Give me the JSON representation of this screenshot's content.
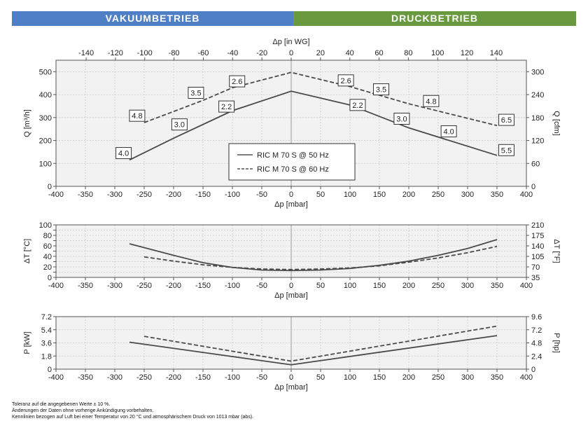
{
  "header": {
    "left": "VAKUUMBETRIEB",
    "right": "DRUCKBETRIEB",
    "colors": {
      "left": "#4f7fc4",
      "right": "#6a9a3f"
    }
  },
  "footnotes": [
    "Toleranz auf die angegebenen Werte ± 10 %.",
    "Änderungen der Daten ohne vorherige Ankündigung vorbehalten.",
    "Kennlinien bezogen auf Luft bei einer Temperatur von 20 °C und atmosphärischem Druck von 1013 mbar (abs)."
  ],
  "chart_data": [
    {
      "type": "line",
      "title": "",
      "xlabel": "Δp [mbar]",
      "ylabel": "Q [m³/h]",
      "xlim": [
        -400,
        400
      ],
      "ylim": [
        0,
        550
      ],
      "xticks": [
        -400,
        -350,
        -300,
        -250,
        -200,
        -150,
        -100,
        -50,
        0,
        50,
        100,
        150,
        200,
        250,
        300,
        350,
        400
      ],
      "yticks": [
        0,
        100,
        200,
        300,
        400,
        500
      ],
      "top_axis": {
        "label": "Δp [in WG]",
        "ticks": [
          -140,
          -120,
          -100,
          -80,
          -60,
          -40,
          -20,
          0,
          20,
          40,
          60,
          80,
          100,
          120,
          140
        ]
      },
      "right_axis": {
        "label": "Q [cfm]",
        "ticks": [
          0,
          60,
          120,
          180,
          240,
          300
        ]
      },
      "grid": true,
      "legend": {
        "placement": "center-lower",
        "entries": [
          {
            "name": "RIC M 70 S @ 50 Hz",
            "style": "solid"
          },
          {
            "name": "RIC M 70 S @ 60 Hz",
            "style": "dashed"
          }
        ]
      },
      "series": [
        {
          "name": "RIC M 70 S @ 50 Hz",
          "style": "solid",
          "x": [
            -275,
            -200,
            -100,
            0,
            100,
            200,
            350
          ],
          "y": [
            115,
            210,
            330,
            415,
            355,
            255,
            135
          ]
        },
        {
          "name": "RIC M 70 S @ 60 Hz",
          "style": "dashed",
          "x": [
            -250,
            -150,
            -100,
            0,
            100,
            200,
            350
          ],
          "y": [
            278,
            375,
            430,
            497,
            435,
            360,
            265
          ]
        }
      ],
      "annotations": [
        {
          "text": "4.0",
          "x": -285,
          "y": 145
        },
        {
          "text": "3.0",
          "x": -190,
          "y": 270
        },
        {
          "text": "2.2",
          "x": -110,
          "y": 348
        },
        {
          "text": "4.8",
          "x": -262,
          "y": 308
        },
        {
          "text": "3.5",
          "x": -162,
          "y": 408
        },
        {
          "text": "2.6",
          "x": -92,
          "y": 458
        },
        {
          "text": "2.2",
          "x": 113,
          "y": 355
        },
        {
          "text": "3.0",
          "x": 188,
          "y": 295
        },
        {
          "text": "4.0",
          "x": 268,
          "y": 240
        },
        {
          "text": "5.5",
          "x": 366,
          "y": 158
        },
        {
          "text": "2.6",
          "x": 93,
          "y": 462
        },
        {
          "text": "3.5",
          "x": 153,
          "y": 423
        },
        {
          "text": "4.8",
          "x": 238,
          "y": 372
        },
        {
          "text": "6.5",
          "x": 366,
          "y": 290
        }
      ]
    },
    {
      "type": "line",
      "title": "",
      "xlabel": "Δp [mbar]",
      "ylabel": "ΔT [°C]",
      "xlim": [
        -400,
        400
      ],
      "ylim": [
        0,
        100
      ],
      "xticks": [
        -400,
        -350,
        -300,
        -250,
        -200,
        -150,
        -100,
        -50,
        0,
        50,
        100,
        150,
        200,
        250,
        300,
        350,
        400
      ],
      "yticks": [
        0,
        10,
        20,
        30,
        40,
        50,
        60,
        70,
        80,
        90,
        100
      ],
      "ytick_labels": [
        "0",
        "20",
        "40",
        "60",
        "80",
        "100"
      ],
      "right_axis": {
        "label": "ΔT [°F]",
        "ticks": [
          35,
          70,
          105,
          140,
          175,
          210
        ]
      },
      "grid": true,
      "series": [
        {
          "name": "RIC M 70 S @ 50 Hz",
          "style": "solid",
          "x": [
            -275,
            -200,
            -150,
            -100,
            -50,
            0,
            50,
            100,
            150,
            200,
            250,
            300,
            350
          ],
          "y": [
            64,
            42,
            28,
            19,
            14,
            13,
            14,
            17,
            23,
            31,
            42,
            55,
            72
          ]
        },
        {
          "name": "RIC M 70 S @ 60 Hz",
          "style": "dashed",
          "x": [
            -250,
            -200,
            -150,
            -100,
            -50,
            0,
            50,
            100,
            150,
            200,
            250,
            300,
            350
          ],
          "y": [
            39,
            31,
            24,
            19,
            16,
            15,
            16,
            18,
            22,
            29,
            37,
            47,
            59
          ]
        }
      ]
    },
    {
      "type": "line",
      "title": "",
      "xlabel": "Δp [mbar]",
      "ylabel": "P [kW]",
      "xlim": [
        -400,
        400
      ],
      "ylim": [
        0,
        7.2
      ],
      "xticks": [
        -400,
        -350,
        -300,
        -250,
        -200,
        -150,
        -100,
        -50,
        0,
        50,
        100,
        150,
        200,
        250,
        300,
        350,
        400
      ],
      "yticks": [
        0,
        1.8,
        3.6,
        5.4,
        7.2
      ],
      "right_axis": {
        "label": "P [hp]",
        "ticks": [
          0,
          2.4,
          4.8,
          7.2,
          9.6
        ]
      },
      "grid": true,
      "series": [
        {
          "name": "RIC M 70 S @ 50 Hz",
          "style": "solid",
          "x": [
            -275,
            0,
            350
          ],
          "y": [
            3.7,
            0.6,
            4.6
          ]
        },
        {
          "name": "RIC M 70 S @ 60 Hz",
          "style": "dashed",
          "x": [
            -250,
            0,
            350
          ],
          "y": [
            4.5,
            1.1,
            5.9
          ]
        }
      ]
    }
  ]
}
